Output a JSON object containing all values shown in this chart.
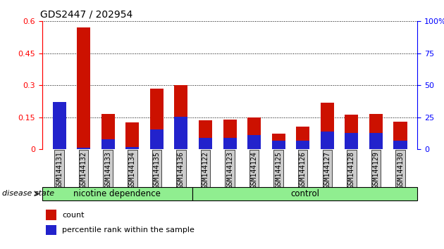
{
  "title": "GDS2447 / 202954",
  "categories": [
    "GSM144131",
    "GSM144132",
    "GSM144133",
    "GSM144134",
    "GSM144135",
    "GSM144136",
    "GSM144122",
    "GSM144123",
    "GSM144124",
    "GSM144125",
    "GSM144126",
    "GSM144127",
    "GSM144128",
    "GSM144129",
    "GSM144130"
  ],
  "count_values": [
    0.2,
    0.57,
    0.165,
    0.125,
    0.285,
    0.3,
    0.135,
    0.138,
    0.148,
    0.075,
    0.105,
    0.22,
    0.162,
    0.165,
    0.13
  ],
  "percentile_values_pct": [
    37,
    1.5,
    8,
    2,
    15.5,
    25.5,
    9,
    9,
    11,
    7,
    7,
    14,
    13,
    13,
    7
  ],
  "count_color": "#cc1100",
  "percentile_color": "#2222cc",
  "ylim_left": [
    0,
    0.6
  ],
  "ylim_right": [
    0,
    100
  ],
  "yticks_left": [
    0,
    0.15,
    0.3,
    0.45,
    0.6
  ],
  "yticks_right": [
    0,
    25,
    50,
    75,
    100
  ],
  "group1_label": "nicotine dependence",
  "group2_label": "control",
  "group1_count": 6,
  "group2_count": 9,
  "legend_count": "count",
  "legend_percentile": "percentile rank within the sample",
  "disease_state_label": "disease state",
  "bar_width": 0.55,
  "background_color": "#ffffff",
  "group_bg_color": "#90ee90",
  "tick_label_bg": "#cccccc"
}
